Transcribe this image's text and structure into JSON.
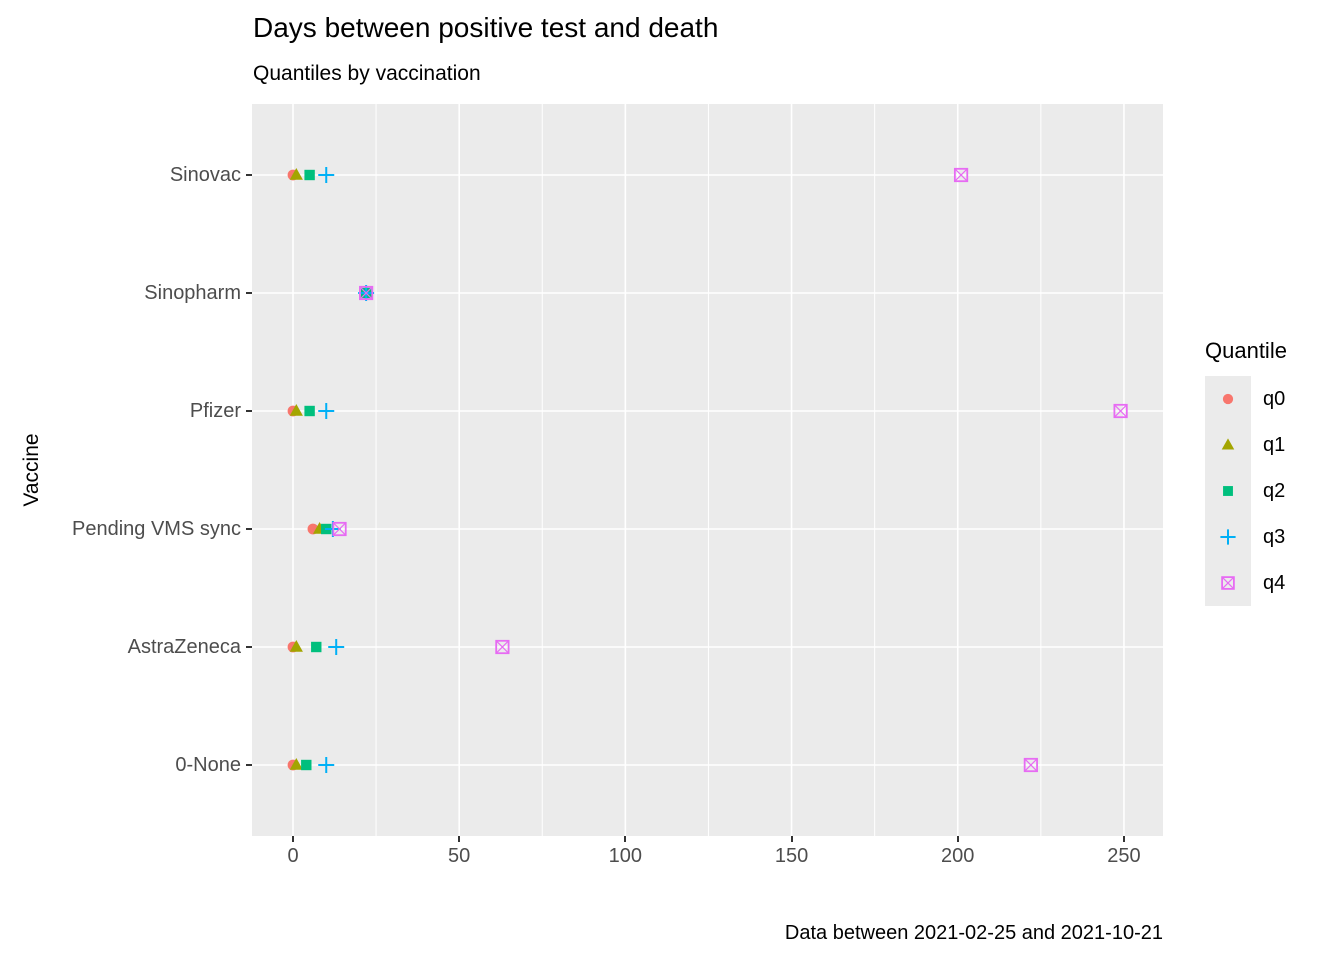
{
  "title": "Days between positive test and death",
  "subtitle": "Quantiles by vaccination",
  "caption": "Data between 2021-02-25 and 2021-10-21",
  "chart_data": {
    "type": "scatter",
    "orientation": "horizontal_categorical",
    "title": "Days between positive test and death",
    "subtitle": "Quantiles by vaccination",
    "xlabel": "",
    "ylabel": "Vaccine",
    "xlim": [
      -12.5,
      262
    ],
    "x_ticks": [
      0,
      50,
      100,
      150,
      200,
      250
    ],
    "x_minor_ticks": [
      25,
      75,
      125,
      175,
      225
    ],
    "grid": "on",
    "categories": [
      "Sinovac",
      "Sinopharm",
      "Pfizer",
      "Pending VMS sync",
      "AstraZeneca",
      "0-None"
    ],
    "legend": {
      "title": "Quantile",
      "position": "right"
    },
    "series": [
      {
        "name": "q0",
        "shape": "circle-icon",
        "color": "#F8766D",
        "values": [
          0,
          22,
          0,
          6,
          0,
          0
        ]
      },
      {
        "name": "q1",
        "shape": "triangle-icon",
        "color": "#A3A500",
        "values": [
          1,
          22,
          1,
          8,
          1,
          1
        ]
      },
      {
        "name": "q2",
        "shape": "square-icon",
        "color": "#00BF7D",
        "values": [
          5,
          22,
          5,
          10,
          7,
          4
        ]
      },
      {
        "name": "q3",
        "shape": "plus-icon",
        "color": "#00B0F6",
        "values": [
          10,
          22,
          10,
          12,
          13,
          10
        ]
      },
      {
        "name": "q4",
        "shape": "square-x-icon",
        "color": "#E76BF3",
        "values": [
          201,
          22,
          249,
          14,
          63,
          222
        ]
      }
    ]
  },
  "colors": {
    "panel_background": "#EBEBEB",
    "gridline": "#FFFFFF",
    "axis_text": "#4D4D4D",
    "tick_mark": "#333333",
    "text": "#000000",
    "legend_key_background": "#EBEBEB"
  }
}
